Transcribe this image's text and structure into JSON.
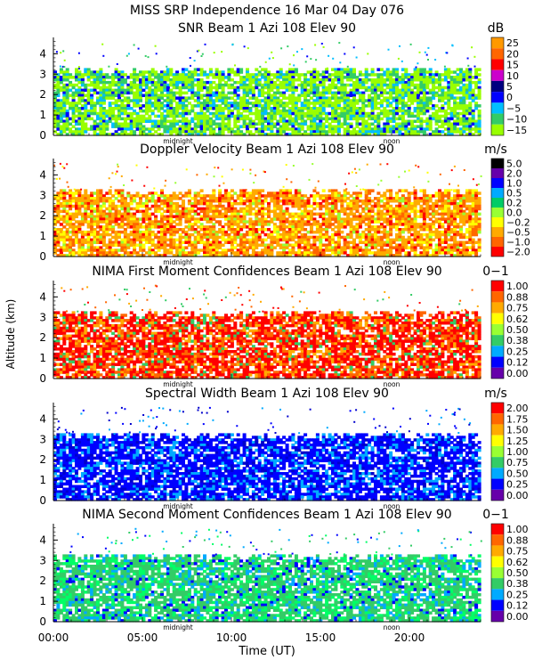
{
  "figure": {
    "title": "MISS SRP Independence  16 Mar 04 Day 076",
    "ylabel": "Altitude (km)",
    "xlabel": "Time (UT)",
    "x_ticks": [
      "00:00",
      "05:00",
      "10:00",
      "15:00",
      "20:00"
    ],
    "x_tick_values_hours": [
      0,
      5,
      10,
      15,
      20
    ],
    "x_range_hours": [
      0,
      24
    ],
    "y_ticks": [
      "0",
      "1",
      "2",
      "3",
      "4"
    ],
    "y_range_km": [
      0,
      4.8
    ],
    "markers": [
      {
        "label": "midnight",
        "hour": 7.0
      },
      {
        "label": "noon",
        "hour": 19.0
      }
    ]
  },
  "chart_data": [
    {
      "type": "heatmap",
      "title": "SNR Beam 1 Azi 108 Elev 90",
      "unit": "dB",
      "colorbar_labels": [
        "25",
        "20",
        "15",
        "10",
        "5",
        "0",
        "−5",
        "−10",
        "−15"
      ],
      "colorbar_colors": [
        "#ff9900",
        "#ff6600",
        "#ff0000",
        "#cc00cc",
        "#000080",
        "#0000ff",
        "#00bfff",
        "#33cc66",
        "#99ff00"
      ],
      "dominant_colors": [
        "#99ff00",
        "#33cc66",
        "#00bfff",
        "#0000ff"
      ],
      "data_top_km": 3.3
    },
    {
      "type": "heatmap",
      "title": "Doppler Velocity Beam 1 Azi 108 Elev 90",
      "unit": "m/s",
      "colorbar_labels": [
        "5.0",
        "2.0",
        "1.0",
        "0.5",
        "0.2",
        "0.0",
        "−0.2",
        "−0.5",
        "−1.0",
        "−2.0"
      ],
      "colorbar_colors": [
        "#000000",
        "#6600aa",
        "#0000ff",
        "#00aaff",
        "#00cc66",
        "#99ff33",
        "#ffff00",
        "#ffaa00",
        "#ff6600",
        "#ff0000"
      ],
      "dominant_colors": [
        "#ffaa00",
        "#ff6600",
        "#ffff00",
        "#ff0000",
        "#99ff33"
      ],
      "data_top_km": 3.3
    },
    {
      "type": "heatmap",
      "title": "NIMA First Moment Confidences Beam 1 Azi 108 Elev 90",
      "unit": "0−1",
      "colorbar_labels": [
        "1.00",
        "0.88",
        "0.75",
        "0.62",
        "0.50",
        "0.38",
        "0.25",
        "0.12",
        "0.00"
      ],
      "colorbar_colors": [
        "#ff0000",
        "#ff6600",
        "#ffaa00",
        "#ffff00",
        "#99ff33",
        "#33cc66",
        "#00aaff",
        "#0000ff",
        "#6600aa"
      ],
      "dominant_colors": [
        "#ff0000",
        "#ff6600",
        "#ffaa00",
        "#33cc66"
      ],
      "data_top_km": 3.3
    },
    {
      "type": "heatmap",
      "title": "Spectral Width Beam 1 Azi 108 Elev 90",
      "unit": "m/s",
      "colorbar_labels": [
        "2.00",
        "1.75",
        "1.50",
        "1.25",
        "1.00",
        "0.75",
        "0.50",
        "0.25",
        "0.00"
      ],
      "colorbar_colors": [
        "#ff0000",
        "#ff6600",
        "#ffaa00",
        "#ffff00",
        "#99ff33",
        "#33cc66",
        "#00aaff",
        "#0000ff",
        "#6600aa"
      ],
      "dominant_colors": [
        "#0000ff",
        "#00aaff",
        "#0000cc"
      ],
      "data_top_km": 3.3
    },
    {
      "type": "heatmap",
      "title": "NIMA Second Moment Confidences Beam 1 Azi 108 Elev 90",
      "unit": "0−1",
      "colorbar_labels": [
        "1.00",
        "0.88",
        "0.75",
        "0.62",
        "0.50",
        "0.38",
        "0.25",
        "0.12",
        "0.00"
      ],
      "colorbar_colors": [
        "#ff0000",
        "#ff6600",
        "#ffaa00",
        "#ffff00",
        "#99ff33",
        "#33cc66",
        "#00aaff",
        "#0000ff",
        "#6600aa"
      ],
      "dominant_colors": [
        "#33cc66",
        "#00ff66",
        "#00aaff",
        "#0000ff"
      ],
      "data_top_km": 3.3
    }
  ]
}
